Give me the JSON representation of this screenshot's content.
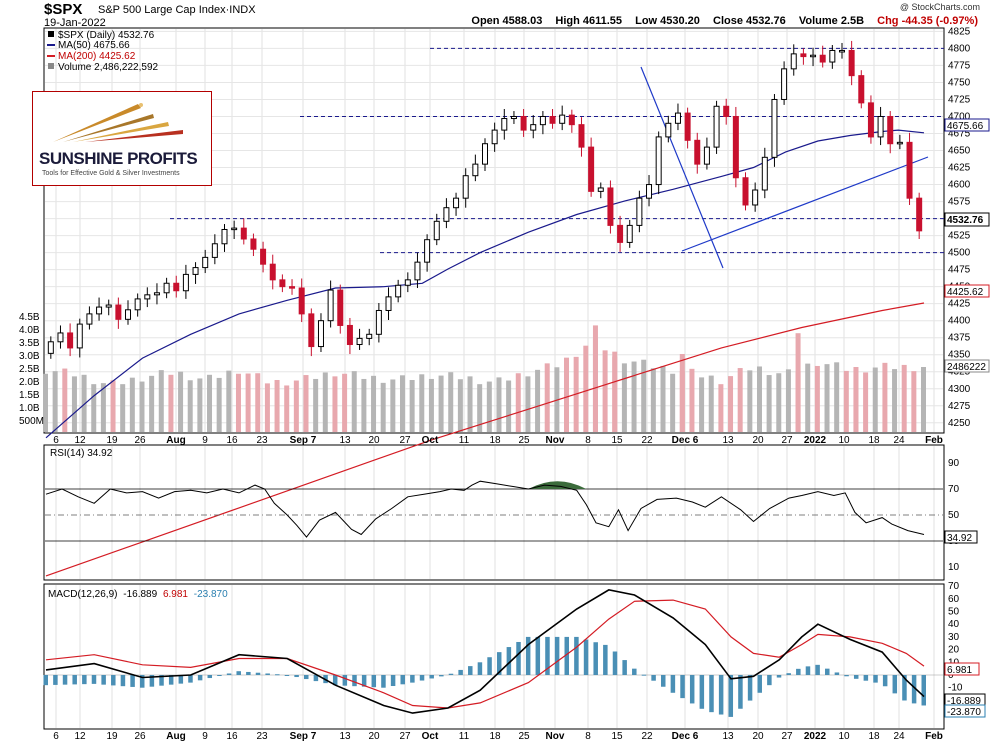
{
  "header": {
    "symbol": "$SPX",
    "description": "S&P 500 Large Cap Index·INDX",
    "date": "19-Jan-2022",
    "credit": "@ StockCharts.com",
    "quote": {
      "open": "Open 4588.03",
      "high": "High 4611.55",
      "low": "Low 4530.20",
      "close": "Close 4532.76",
      "volume": "Volume 2.5B",
      "change": "Chg -44.35 (-0.97%)",
      "change_color": "#c00000"
    }
  },
  "logo": {
    "name": "SUNSHINE PROFITS",
    "tagline": "Tools for Effective Gold & Silver Investments"
  },
  "legends": {
    "price": "$SPX (Daily) 4532.76",
    "ma50": "MA(50) 4675.66",
    "ma200": "MA(200) 4425.62",
    "volume": "Volume 2,486,222,592",
    "rsi": "RSI(14) 34.92",
    "macd_name": "MACD(12,26,9)",
    "macd_v1": "-16.889",
    "macd_v2": "6.981",
    "macd_v3": "-23.870"
  },
  "tags": {
    "ma50": "4675.66",
    "close": "4532.76",
    "ma200": "4425.62",
    "volume": "2486222",
    "rsi": "34.92",
    "macd_signal": "6.981",
    "macd_line": "-16.889",
    "macd_hist": "-23.870"
  },
  "colors": {
    "up": "#000000",
    "down": "#c8102e",
    "ma50": "#1a1a8c",
    "ma200": "#d41c24",
    "vol_up": "#b5b5b5",
    "vol_down": "#e8a8ae",
    "trend": "#1f3ac8",
    "rsi_fill": "#3b6b3b",
    "hist": "#4a8fb5"
  },
  "chart_data": {
    "type": "candlestick",
    "x_labels": [
      "6",
      "12",
      "19",
      "26",
      "Aug",
      "9",
      "16",
      "23",
      "Sep 7",
      "13",
      "20",
      "27",
      "Oct",
      "11",
      "18",
      "25",
      "Nov",
      "8",
      "15",
      "22",
      "Dec 6",
      "13",
      "20",
      "27",
      "2022",
      "10",
      "18",
      "24",
      "Feb"
    ],
    "price_axis": {
      "ticks": [
        4250,
        4275,
        4300,
        4325,
        4350,
        4375,
        4400,
        4425,
        4450,
        4475,
        4500,
        4525,
        4550,
        4575,
        4600,
        4625,
        4650,
        4675,
        4700,
        4725,
        4750,
        4775,
        4800,
        4825
      ],
      "range": [
        4235,
        4830
      ]
    },
    "volume_axis": {
      "ticks": [
        "500M",
        "1.0B",
        "1.5B",
        "2.0B",
        "2.5B",
        "3.0B",
        "3.5B",
        "4.0B",
        "4.5B"
      ]
    },
    "rsi_axis": {
      "ticks": [
        10,
        30,
        50,
        70,
        90
      ],
      "overbought": 70,
      "oversold": 30
    },
    "macd_axis": {
      "ticks": [
        -30,
        -20,
        -10,
        0,
        10,
        20,
        30,
        40,
        50,
        60,
        70
      ]
    },
    "horizontal_levels": [
      4800,
      4700,
      4550,
      4500
    ],
    "price_points": [
      [
        0,
        4352
      ],
      [
        6,
        4369
      ],
      [
        12,
        4382
      ],
      [
        18,
        4360
      ],
      [
        24,
        4395
      ],
      [
        30,
        4410
      ],
      [
        36,
        4420
      ],
      [
        42,
        4423
      ],
      [
        48,
        4402
      ],
      [
        54,
        4416
      ],
      [
        60,
        4432
      ],
      [
        66,
        4438
      ],
      [
        72,
        4441
      ],
      [
        78,
        4455
      ],
      [
        84,
        4444
      ],
      [
        90,
        4468
      ],
      [
        96,
        4478
      ],
      [
        102,
        4493
      ],
      [
        108,
        4513
      ],
      [
        114,
        4534
      ],
      [
        120,
        4536
      ],
      [
        126,
        4520
      ],
      [
        132,
        4505
      ],
      [
        138,
        4483
      ],
      [
        144,
        4460
      ],
      [
        150,
        4450
      ],
      [
        156,
        4448
      ],
      [
        162,
        4410
      ],
      [
        168,
        4362
      ],
      [
        174,
        4400
      ],
      [
        180,
        4445
      ],
      [
        186,
        4393
      ],
      [
        192,
        4365
      ],
      [
        198,
        4374
      ],
      [
        204,
        4380
      ],
      [
        210,
        4415
      ],
      [
        216,
        4435
      ],
      [
        222,
        4452
      ],
      [
        228,
        4460
      ],
      [
        234,
        4486
      ],
      [
        240,
        4519
      ],
      [
        246,
        4546
      ],
      [
        252,
        4566
      ],
      [
        258,
        4580
      ],
      [
        264,
        4613
      ],
      [
        270,
        4630
      ],
      [
        276,
        4660
      ],
      [
        282,
        4680
      ],
      [
        288,
        4697
      ],
      [
        294,
        4700
      ],
      [
        300,
        4680
      ],
      [
        306,
        4688
      ],
      [
        312,
        4700
      ],
      [
        318,
        4690
      ],
      [
        324,
        4702
      ],
      [
        330,
        4688
      ],
      [
        336,
        4655
      ],
      [
        342,
        4590
      ],
      [
        348,
        4595
      ],
      [
        354,
        4540
      ],
      [
        360,
        4515
      ],
      [
        366,
        4540
      ],
      [
        372,
        4580
      ],
      [
        378,
        4600
      ],
      [
        384,
        4670
      ],
      [
        390,
        4690
      ],
      [
        396,
        4705
      ],
      [
        402,
        4665
      ],
      [
        408,
        4630
      ],
      [
        414,
        4655
      ],
      [
        420,
        4715
      ],
      [
        426,
        4700
      ],
      [
        432,
        4610
      ],
      [
        438,
        4570
      ],
      [
        444,
        4592
      ],
      [
        450,
        4640
      ],
      [
        456,
        4725
      ],
      [
        462,
        4770
      ],
      [
        468,
        4792
      ],
      [
        474,
        4788
      ],
      [
        480,
        4790
      ],
      [
        486,
        4780
      ],
      [
        492,
        4797
      ],
      [
        498,
        4797
      ],
      [
        504,
        4760
      ],
      [
        510,
        4720
      ],
      [
        516,
        4670
      ],
      [
        522,
        4700
      ],
      [
        528,
        4660
      ],
      [
        534,
        4662
      ],
      [
        540,
        4580
      ],
      [
        546,
        4532
      ]
    ],
    "macd_points": [
      [
        0,
        4
      ],
      [
        30,
        9
      ],
      [
        60,
        -2
      ],
      [
        90,
        0
      ],
      [
        120,
        16
      ],
      [
        150,
        13
      ],
      [
        180,
        -8
      ],
      [
        210,
        -24
      ],
      [
        228,
        -30
      ],
      [
        250,
        -26
      ],
      [
        270,
        -12
      ],
      [
        300,
        24
      ],
      [
        330,
        52
      ],
      [
        350,
        67
      ],
      [
        366,
        63
      ],
      [
        390,
        45
      ],
      [
        410,
        24
      ],
      [
        426,
        -3
      ],
      [
        440,
        -1
      ],
      [
        456,
        12
      ],
      [
        470,
        30
      ],
      [
        480,
        40
      ],
      [
        500,
        28
      ],
      [
        520,
        18
      ],
      [
        535,
        -4
      ],
      [
        546,
        -17
      ]
    ],
    "signal_points": [
      [
        0,
        12
      ],
      [
        30,
        16
      ],
      [
        60,
        8
      ],
      [
        90,
        6
      ],
      [
        120,
        13
      ],
      [
        150,
        13
      ],
      [
        180,
        0
      ],
      [
        210,
        -14
      ],
      [
        228,
        -24
      ],
      [
        250,
        -26
      ],
      [
        270,
        -22
      ],
      [
        300,
        -6
      ],
      [
        330,
        22
      ],
      [
        350,
        44
      ],
      [
        366,
        58
      ],
      [
        390,
        59
      ],
      [
        410,
        52
      ],
      [
        426,
        30
      ],
      [
        440,
        17
      ],
      [
        456,
        14
      ],
      [
        470,
        24
      ],
      [
        480,
        32
      ],
      [
        500,
        30
      ],
      [
        520,
        25
      ],
      [
        535,
        17
      ],
      [
        546,
        7
      ]
    ],
    "rsi_points": [
      [
        0,
        66
      ],
      [
        10,
        70
      ],
      [
        20,
        64
      ],
      [
        30,
        59
      ],
      [
        40,
        70
      ],
      [
        50,
        67
      ],
      [
        60,
        68
      ],
      [
        70,
        63
      ],
      [
        80,
        68
      ],
      [
        90,
        69
      ],
      [
        100,
        67
      ],
      [
        110,
        70
      ],
      [
        120,
        67
      ],
      [
        130,
        73
      ],
      [
        136,
        70
      ],
      [
        142,
        59
      ],
      [
        150,
        50
      ],
      [
        156,
        42
      ],
      [
        162,
        33
      ],
      [
        170,
        46
      ],
      [
        180,
        52
      ],
      [
        190,
        39
      ],
      [
        196,
        35
      ],
      [
        205,
        47
      ],
      [
        215,
        55
      ],
      [
        225,
        64
      ],
      [
        235,
        66
      ],
      [
        245,
        68
      ],
      [
        252,
        70
      ],
      [
        260,
        69
      ],
      [
        265,
        73
      ],
      [
        270,
        76
      ],
      [
        280,
        74
      ],
      [
        290,
        72
      ],
      [
        300,
        70
      ],
      [
        310,
        73
      ],
      [
        320,
        72
      ],
      [
        330,
        69
      ],
      [
        336,
        58
      ],
      [
        342,
        44
      ],
      [
        350,
        41
      ],
      [
        356,
        54
      ],
      [
        362,
        38
      ],
      [
        370,
        55
      ],
      [
        380,
        62
      ],
      [
        392,
        63
      ],
      [
        402,
        60
      ],
      [
        410,
        56
      ],
      [
        420,
        64
      ],
      [
        432,
        54
      ],
      [
        440,
        45
      ],
      [
        450,
        55
      ],
      [
        462,
        63
      ],
      [
        470,
        65
      ],
      [
        480,
        68
      ],
      [
        490,
        65
      ],
      [
        497,
        67
      ],
      [
        503,
        52
      ],
      [
        510,
        44
      ],
      [
        520,
        48
      ],
      [
        526,
        43
      ],
      [
        536,
        38
      ],
      [
        546,
        35
      ]
    ],
    "ma50_points": [
      [
        0,
        4228
      ],
      [
        30,
        4290
      ],
      [
        60,
        4345
      ],
      [
        90,
        4380
      ],
      [
        120,
        4410
      ],
      [
        150,
        4430
      ],
      [
        180,
        4448
      ],
      [
        210,
        4450
      ],
      [
        234,
        4455
      ],
      [
        250,
        4476
      ],
      [
        270,
        4500
      ],
      [
        300,
        4530
      ],
      [
        330,
        4556
      ],
      [
        360,
        4576
      ],
      [
        390,
        4593
      ],
      [
        420,
        4612
      ],
      [
        440,
        4625
      ],
      [
        460,
        4648
      ],
      [
        480,
        4664
      ],
      [
        500,
        4672
      ],
      [
        520,
        4678
      ],
      [
        530,
        4680
      ],
      [
        546,
        4676
      ]
    ],
    "ma200_points": [
      [
        0,
        4025
      ],
      [
        60,
        4075
      ],
      [
        120,
        4125
      ],
      [
        180,
        4175
      ],
      [
        240,
        4225
      ],
      [
        300,
        4270
      ],
      [
        360,
        4315
      ],
      [
        420,
        4360
      ],
      [
        470,
        4390
      ],
      [
        520,
        4415
      ],
      [
        546,
        4426
      ]
    ],
    "volume_points": [
      [
        0,
        2.4
      ],
      [
        20,
        2.2
      ],
      [
        40,
        1.8
      ],
      [
        60,
        2.1
      ],
      [
        80,
        2.3
      ],
      [
        100,
        2.0
      ],
      [
        120,
        2.4
      ],
      [
        140,
        1.9
      ],
      [
        160,
        2.0
      ],
      [
        180,
        2.3
      ],
      [
        200,
        2.1
      ],
      [
        220,
        2.0
      ],
      [
        240,
        2.2
      ],
      [
        260,
        2.1
      ],
      [
        280,
        1.9
      ],
      [
        300,
        2.3
      ],
      [
        320,
        2.6
      ],
      [
        340,
        3.5
      ],
      [
        360,
        2.8
      ],
      [
        380,
        2.5
      ],
      [
        400,
        2.3
      ],
      [
        420,
        2.0
      ],
      [
        440,
        2.5
      ],
      [
        460,
        2.2
      ],
      [
        480,
        2.7
      ],
      [
        500,
        2.4
      ],
      [
        520,
        2.5
      ],
      [
        546,
        2.5
      ]
    ]
  }
}
